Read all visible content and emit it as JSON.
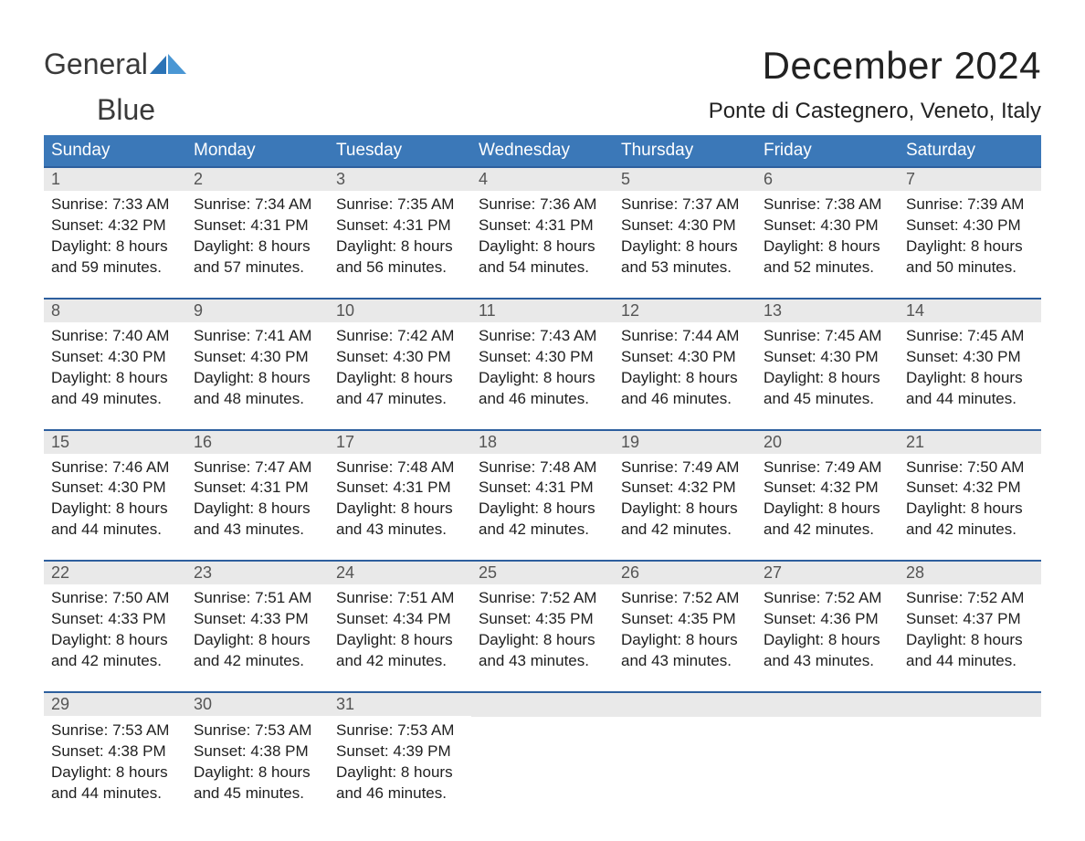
{
  "brand": {
    "part1": "General",
    "part2": "Blue"
  },
  "title": "December 2024",
  "location": "Ponte di Castegnero, Veneto, Italy",
  "colors": {
    "header_bg": "#3b78b8",
    "week_line": "#2d5f9e",
    "daynum_band": "#e9e9e9",
    "page_bg": "#ffffff",
    "logo_blue": "#2b73b6"
  },
  "typography": {
    "title_fontsize": 42,
    "location_fontsize": 24,
    "header_fontsize": 19,
    "body_fontsize": 17
  },
  "dow": [
    "Sunday",
    "Monday",
    "Tuesday",
    "Wednesday",
    "Thursday",
    "Friday",
    "Saturday"
  ],
  "labels": {
    "sunrise": "Sunrise: ",
    "sunset": "Sunset: ",
    "daylight": "Daylight: "
  },
  "weeks": [
    [
      {
        "n": "1",
        "sunrise": "7:33 AM",
        "sunset": "4:32 PM",
        "dl1": "8 hours",
        "dl2": "and 59 minutes."
      },
      {
        "n": "2",
        "sunrise": "7:34 AM",
        "sunset": "4:31 PM",
        "dl1": "8 hours",
        "dl2": "and 57 minutes."
      },
      {
        "n": "3",
        "sunrise": "7:35 AM",
        "sunset": "4:31 PM",
        "dl1": "8 hours",
        "dl2": "and 56 minutes."
      },
      {
        "n": "4",
        "sunrise": "7:36 AM",
        "sunset": "4:31 PM",
        "dl1": "8 hours",
        "dl2": "and 54 minutes."
      },
      {
        "n": "5",
        "sunrise": "7:37 AM",
        "sunset": "4:30 PM",
        "dl1": "8 hours",
        "dl2": "and 53 minutes."
      },
      {
        "n": "6",
        "sunrise": "7:38 AM",
        "sunset": "4:30 PM",
        "dl1": "8 hours",
        "dl2": "and 52 minutes."
      },
      {
        "n": "7",
        "sunrise": "7:39 AM",
        "sunset": "4:30 PM",
        "dl1": "8 hours",
        "dl2": "and 50 minutes."
      }
    ],
    [
      {
        "n": "8",
        "sunrise": "7:40 AM",
        "sunset": "4:30 PM",
        "dl1": "8 hours",
        "dl2": "and 49 minutes."
      },
      {
        "n": "9",
        "sunrise": "7:41 AM",
        "sunset": "4:30 PM",
        "dl1": "8 hours",
        "dl2": "and 48 minutes."
      },
      {
        "n": "10",
        "sunrise": "7:42 AM",
        "sunset": "4:30 PM",
        "dl1": "8 hours",
        "dl2": "and 47 minutes."
      },
      {
        "n": "11",
        "sunrise": "7:43 AM",
        "sunset": "4:30 PM",
        "dl1": "8 hours",
        "dl2": "and 46 minutes."
      },
      {
        "n": "12",
        "sunrise": "7:44 AM",
        "sunset": "4:30 PM",
        "dl1": "8 hours",
        "dl2": "and 46 minutes."
      },
      {
        "n": "13",
        "sunrise": "7:45 AM",
        "sunset": "4:30 PM",
        "dl1": "8 hours",
        "dl2": "and 45 minutes."
      },
      {
        "n": "14",
        "sunrise": "7:45 AM",
        "sunset": "4:30 PM",
        "dl1": "8 hours",
        "dl2": "and 44 minutes."
      }
    ],
    [
      {
        "n": "15",
        "sunrise": "7:46 AM",
        "sunset": "4:30 PM",
        "dl1": "8 hours",
        "dl2": "and 44 minutes."
      },
      {
        "n": "16",
        "sunrise": "7:47 AM",
        "sunset": "4:31 PM",
        "dl1": "8 hours",
        "dl2": "and 43 minutes."
      },
      {
        "n": "17",
        "sunrise": "7:48 AM",
        "sunset": "4:31 PM",
        "dl1": "8 hours",
        "dl2": "and 43 minutes."
      },
      {
        "n": "18",
        "sunrise": "7:48 AM",
        "sunset": "4:31 PM",
        "dl1": "8 hours",
        "dl2": "and 42 minutes."
      },
      {
        "n": "19",
        "sunrise": "7:49 AM",
        "sunset": "4:32 PM",
        "dl1": "8 hours",
        "dl2": "and 42 minutes."
      },
      {
        "n": "20",
        "sunrise": "7:49 AM",
        "sunset": "4:32 PM",
        "dl1": "8 hours",
        "dl2": "and 42 minutes."
      },
      {
        "n": "21",
        "sunrise": "7:50 AM",
        "sunset": "4:32 PM",
        "dl1": "8 hours",
        "dl2": "and 42 minutes."
      }
    ],
    [
      {
        "n": "22",
        "sunrise": "7:50 AM",
        "sunset": "4:33 PM",
        "dl1": "8 hours",
        "dl2": "and 42 minutes."
      },
      {
        "n": "23",
        "sunrise": "7:51 AM",
        "sunset": "4:33 PM",
        "dl1": "8 hours",
        "dl2": "and 42 minutes."
      },
      {
        "n": "24",
        "sunrise": "7:51 AM",
        "sunset": "4:34 PM",
        "dl1": "8 hours",
        "dl2": "and 42 minutes."
      },
      {
        "n": "25",
        "sunrise": "7:52 AM",
        "sunset": "4:35 PM",
        "dl1": "8 hours",
        "dl2": "and 43 minutes."
      },
      {
        "n": "26",
        "sunrise": "7:52 AM",
        "sunset": "4:35 PM",
        "dl1": "8 hours",
        "dl2": "and 43 minutes."
      },
      {
        "n": "27",
        "sunrise": "7:52 AM",
        "sunset": "4:36 PM",
        "dl1": "8 hours",
        "dl2": "and 43 minutes."
      },
      {
        "n": "28",
        "sunrise": "7:52 AM",
        "sunset": "4:37 PM",
        "dl1": "8 hours",
        "dl2": "and 44 minutes."
      }
    ],
    [
      {
        "n": "29",
        "sunrise": "7:53 AM",
        "sunset": "4:38 PM",
        "dl1": "8 hours",
        "dl2": "and 44 minutes."
      },
      {
        "n": "30",
        "sunrise": "7:53 AM",
        "sunset": "4:38 PM",
        "dl1": "8 hours",
        "dl2": "and 45 minutes."
      },
      {
        "n": "31",
        "sunrise": "7:53 AM",
        "sunset": "4:39 PM",
        "dl1": "8 hours",
        "dl2": "and 46 minutes."
      },
      null,
      null,
      null,
      null
    ]
  ]
}
